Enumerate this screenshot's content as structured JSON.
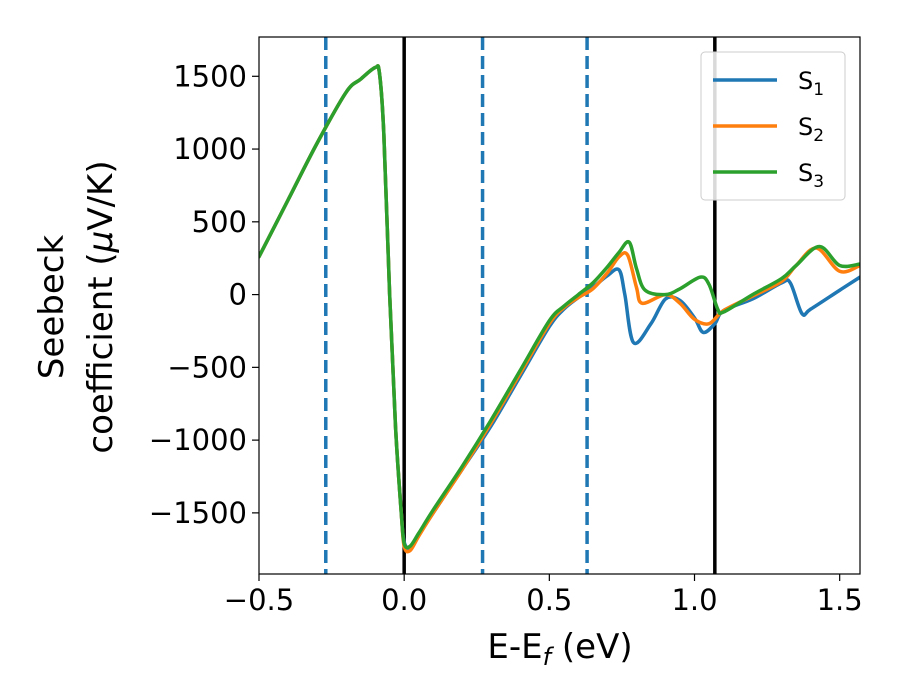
{
  "chart_data": {
    "type": "line",
    "title": "",
    "xlabel": "E-E$_f$ (eV)",
    "xlabel_parts": {
      "main": "E-E",
      "sub": "f",
      "rest": " (eV)"
    },
    "ylabel": "Seebeck coefficient (μV/K)",
    "ylabel_lines": [
      "Seebeck",
      "coefficient  (",
      "μ",
      "V/K)"
    ],
    "xlim": [
      -0.5,
      1.57
    ],
    "ylim": [
      -1920,
      1770
    ],
    "xticks": [
      -0.5,
      0.0,
      0.5,
      1.0,
      1.5
    ],
    "xtick_labels": [
      "−0.5",
      "0.0",
      "0.5",
      "1.0",
      "1.5"
    ],
    "yticks": [
      -1500,
      -1000,
      -500,
      0,
      500,
      1000,
      1500
    ],
    "ytick_labels": [
      "−1500",
      "−1000",
      "−500",
      "0",
      "500",
      "1000",
      "1500"
    ],
    "grid": false,
    "legend_position": "top-right",
    "vlines_solid": [
      0.0,
      1.07
    ],
    "vlines_dashed": [
      -0.27,
      0.27,
      0.63
    ],
    "colors": {
      "solid_vline": "#000000",
      "dashed_vline": "#1f77b4"
    },
    "series": [
      {
        "name": "S",
        "subscript": "1",
        "color": "#1f77b4",
        "x": [
          -0.5,
          -0.4,
          -0.3,
          -0.2,
          -0.15,
          -0.1,
          -0.085,
          -0.07,
          -0.05,
          -0.03,
          -0.01,
          0.0,
          0.02,
          0.05,
          0.1,
          0.2,
          0.3,
          0.4,
          0.5,
          0.55,
          0.6,
          0.65,
          0.7,
          0.74,
          0.76,
          0.79,
          0.85,
          0.9,
          0.95,
          1.0,
          1.03,
          1.07,
          1.1,
          1.2,
          1.3,
          1.33,
          1.37,
          1.4,
          1.5,
          1.57
        ],
        "y": [
          260,
          650,
          1040,
          1390,
          1480,
          1560,
          1520,
          1100,
          0,
          -900,
          -1500,
          -1700,
          -1740,
          -1650,
          -1500,
          -1200,
          -900,
          -560,
          -220,
          -100,
          -20,
          50,
          130,
          170,
          0,
          -330,
          -200,
          -30,
          -40,
          -160,
          -260,
          -200,
          -110,
          -30,
          80,
          80,
          -130,
          -100,
          30,
          120
        ]
      },
      {
        "name": "S",
        "subscript": "2",
        "color": "#ff7f0e",
        "x": [
          -0.5,
          -0.4,
          -0.3,
          -0.2,
          -0.15,
          -0.1,
          -0.085,
          -0.07,
          -0.05,
          -0.03,
          -0.01,
          0.0,
          0.02,
          0.05,
          0.1,
          0.2,
          0.3,
          0.4,
          0.5,
          0.55,
          0.6,
          0.65,
          0.7,
          0.74,
          0.77,
          0.8,
          0.82,
          0.9,
          0.95,
          1.0,
          1.05,
          1.1,
          1.2,
          1.3,
          1.35,
          1.42,
          1.5,
          1.57
        ],
        "y": [
          260,
          650,
          1040,
          1390,
          1480,
          1560,
          1520,
          1100,
          0,
          -900,
          -1500,
          -1730,
          -1760,
          -1660,
          -1500,
          -1200,
          -880,
          -540,
          -200,
          -90,
          -20,
          40,
          150,
          260,
          270,
          50,
          -60,
          0,
          -60,
          -170,
          -200,
          -110,
          -10,
          90,
          200,
          320,
          160,
          200
        ]
      },
      {
        "name": "S",
        "subscript": "3",
        "color": "#2ca02c",
        "x": [
          -0.5,
          -0.4,
          -0.3,
          -0.2,
          -0.15,
          -0.1,
          -0.085,
          -0.07,
          -0.05,
          -0.03,
          -0.01,
          0.0,
          0.02,
          0.05,
          0.1,
          0.2,
          0.3,
          0.4,
          0.5,
          0.55,
          0.6,
          0.65,
          0.7,
          0.74,
          0.775,
          0.8,
          0.83,
          0.9,
          0.95,
          1.02,
          1.05,
          1.08,
          1.1,
          1.2,
          1.3,
          1.35,
          1.43,
          1.5,
          1.57
        ],
        "y": [
          260,
          650,
          1040,
          1390,
          1480,
          1560,
          1520,
          1100,
          0,
          -900,
          -1500,
          -1710,
          -1730,
          -1640,
          -1480,
          -1180,
          -860,
          -520,
          -180,
          -80,
          0,
          80,
          190,
          290,
          360,
          180,
          30,
          0,
          40,
          120,
          70,
          -100,
          -120,
          0,
          110,
          200,
          330,
          200,
          210
        ]
      }
    ]
  }
}
